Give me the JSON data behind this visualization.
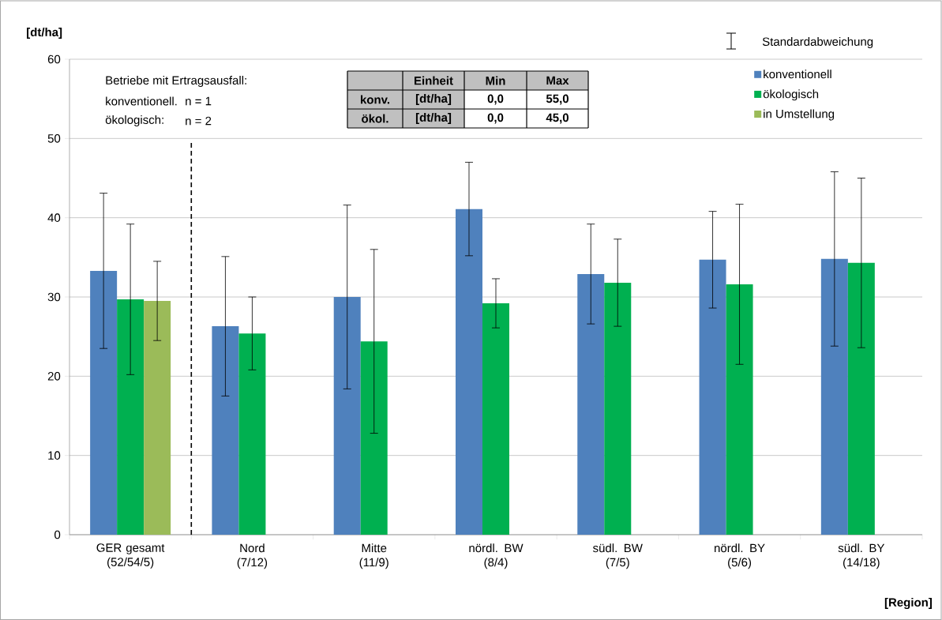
{
  "chart_data": {
    "type": "bar",
    "categories": [
      "GER gesamt\n(52/54/5)",
      "Nord\n(7/12)",
      "Mitte\n(11/9)",
      "nördl. BW\n(8/4)",
      "südl. BW\n(7/5)",
      "nördl. BY\n(5/6)",
      "südl. BY\n(14/18)"
    ],
    "series": [
      {
        "name": "konventionell",
        "color": "#4f81bd",
        "values": [
          33.3,
          26.3,
          30.0,
          41.1,
          32.9,
          34.7,
          34.8
        ],
        "errors": [
          9.8,
          8.8,
          11.6,
          5.9,
          6.3,
          6.1,
          11.0
        ]
      },
      {
        "name": "ökologisch",
        "color": "#00b050",
        "values": [
          29.7,
          25.4,
          24.4,
          29.2,
          31.8,
          31.6,
          34.3
        ],
        "errors": [
          9.5,
          4.6,
          11.6,
          3.1,
          5.5,
          10.1,
          10.7
        ]
      },
      {
        "name": "in Umstellung",
        "color": "#9bbb59",
        "values": [
          29.5,
          null,
          null,
          null,
          null,
          null,
          null
        ],
        "errors": [
          5.0,
          null,
          null,
          null,
          null,
          null,
          null
        ]
      }
    ],
    "ylabel": "[dt/ha]",
    "ylim": [
      0,
      60
    ],
    "yticks": [
      0,
      10,
      20,
      30,
      40,
      50,
      60
    ],
    "grid": "y",
    "legend": "top right",
    "annotations": [
      "[Region]",
      "Standardabweichung",
      "Betriebe mit Ertragsausfall:",
      "konventionell.",
      "n = 1",
      "ökologisch:",
      "n = 2",
      "Einheit",
      "Min",
      "Max",
      "konv.",
      "[dt/ha]",
      "0,0",
      "55,0",
      "ökol.",
      "[dt/ha]",
      "0,0",
      "45,0"
    ]
  }
}
